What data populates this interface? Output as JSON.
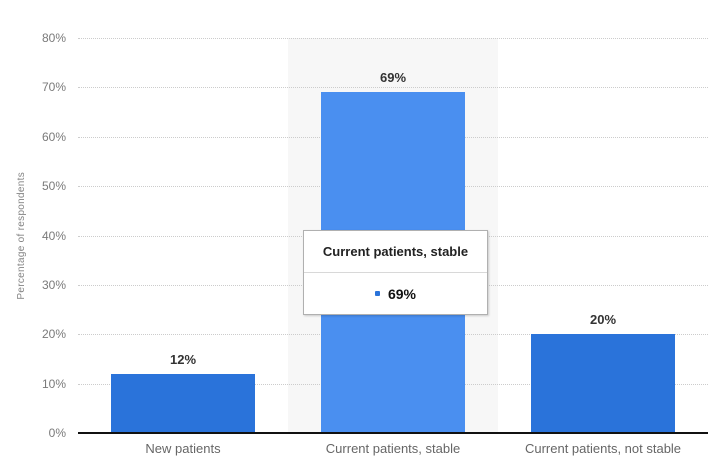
{
  "chart_data": {
    "type": "bar",
    "title": "",
    "xlabel": "",
    "ylabel": "Percentage of respondents",
    "categories": [
      "New patients",
      "Current patients, stable",
      "Current patients, not stable"
    ],
    "values": [
      12,
      69,
      20
    ],
    "value_labels": [
      "12%",
      "69%",
      "20%"
    ],
    "ylim": [
      0,
      80
    ],
    "yticks": [
      0,
      10,
      20,
      30,
      40,
      50,
      60,
      70,
      80
    ],
    "ytick_labels": [
      "0%",
      "10%",
      "20%",
      "30%",
      "40%",
      "50%",
      "60%",
      "70%",
      "80%"
    ],
    "grid": "horizontal-dotted",
    "legend": "none",
    "highlighted_category_index": 1
  },
  "tooltip": {
    "title": "Current patients, stable",
    "value": "69%"
  },
  "colors": {
    "bar": "#2a73da",
    "bar_hover": "#4a8ff0",
    "highlight_band": "#f7f7f7",
    "gridline": "#cccccc",
    "axis_line": "#111111",
    "tooltip_marker": "#2a73da"
  }
}
